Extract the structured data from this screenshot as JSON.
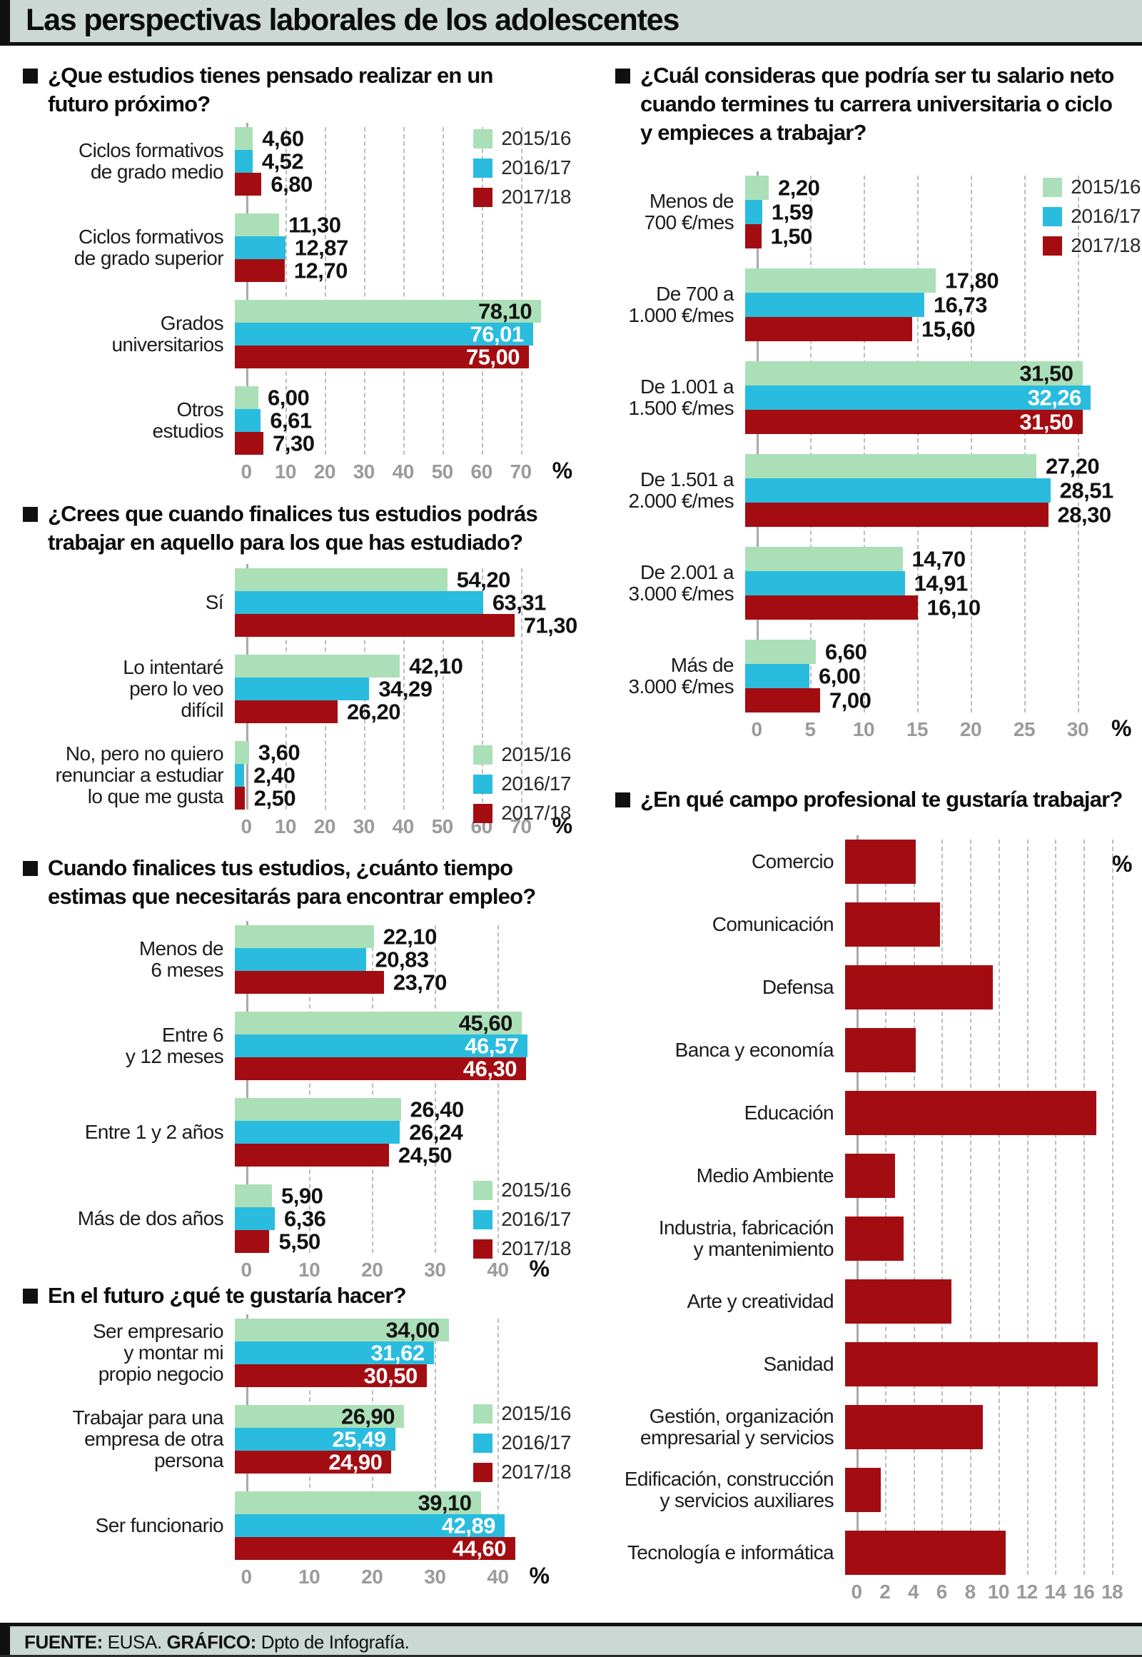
{
  "page": {
    "title": "Las perspectivas laborales de los adolescentes",
    "footer": {
      "source_label": "FUENTE:",
      "source_value": " EUSA. ",
      "graphic_label": "GRÁFICO:",
      "graphic_value": " Dpto de Infografía."
    }
  },
  "colors": {
    "green": "#abdfb8",
    "cyan": "#29bcdf",
    "red": "#a30d12",
    "band_bg": "#cbd8d4",
    "grid": "#bdbdbd",
    "tick": "#9b9b9b"
  },
  "legend": {
    "items": [
      {
        "name": "2015/16",
        "color_key": "green"
      },
      {
        "name": "2016/17",
        "color_key": "cyan"
      },
      {
        "name": "2017/18",
        "color_key": "red"
      }
    ]
  },
  "chart_data": [
    {
      "key": "c1",
      "type": "bar",
      "orientation": "horizontal",
      "unit": "%",
      "title": "¿Que estudios tienes pensado realizar en un futuro próximo?",
      "title_lines": [
        "¿Que estudios tienes pensado realizar en un",
        "futuro próximo?"
      ],
      "xticks": [
        0,
        10,
        20,
        30,
        40,
        50,
        60,
        70
      ],
      "series": [
        "2015/16",
        "2016/17",
        "2017/18"
      ],
      "categories": [
        "Ciclos formativos de grado medio",
        "Ciclos formativos de grado superior",
        "Grados universitarios",
        "Otros estudios"
      ],
      "category_lines": [
        [
          "Ciclos formativos",
          "de grado medio"
        ],
        [
          "Ciclos formativos",
          "de grado superior"
        ],
        [
          "Grados",
          "universitarios"
        ],
        [
          "Otros",
          "estudios"
        ]
      ],
      "rows": [
        {
          "values": [
            4.6,
            4.52,
            6.8
          ],
          "labels": [
            "4,60",
            "4,52",
            "6,80"
          ],
          "inside": false
        },
        {
          "values": [
            11.3,
            12.87,
            12.7
          ],
          "labels": [
            "11,30",
            "12,87",
            "12,70"
          ],
          "inside": false
        },
        {
          "values": [
            78.1,
            76.01,
            75.0
          ],
          "labels": [
            "78,10",
            "76,01",
            "75,00"
          ],
          "inside": true
        },
        {
          "values": [
            6.0,
            6.61,
            7.3
          ],
          "labels": [
            "6,00",
            "6,61",
            "7,30"
          ],
          "inside": false
        }
      ]
    },
    {
      "key": "c2",
      "type": "bar",
      "orientation": "horizontal",
      "unit": "%",
      "title": "¿Crees que cuando finalices tus estudios podrás trabajar en aquello para los que has estudiado?",
      "title_lines": [
        "¿Crees que cuando finalices tus estudios podrás",
        "trabajar en aquello para los que has estudiado?"
      ],
      "xticks": [
        0,
        10,
        20,
        30,
        40,
        50,
        60,
        70
      ],
      "series": [
        "2015/16",
        "2016/17",
        "2017/18"
      ],
      "categories": [
        "Sí",
        "Lo intentaré pero lo veo difícil",
        "No, pero no quiero renunciar a estudiar lo que me gusta"
      ],
      "category_lines": [
        [
          "Sí"
        ],
        [
          "Lo intentaré",
          "pero lo veo",
          "difícil"
        ],
        [
          "No, pero no quiero",
          "renunciar a estudiar",
          "lo que me gusta"
        ]
      ],
      "rows": [
        {
          "values": [
            54.2,
            63.31,
            71.3
          ],
          "labels": [
            "54,20",
            "63,31",
            "71,30"
          ],
          "inside": false
        },
        {
          "values": [
            42.1,
            34.29,
            26.2
          ],
          "labels": [
            "42,10",
            "34,29",
            "26,20"
          ],
          "inside": false
        },
        {
          "values": [
            3.6,
            2.4,
            2.5
          ],
          "labels": [
            "3,60",
            "2,40",
            "2,50"
          ],
          "inside": false
        }
      ]
    },
    {
      "key": "c3",
      "type": "bar",
      "orientation": "horizontal",
      "unit": "%",
      "title": "Cuando finalices tus estudios, ¿cuánto tiempo estimas que necesitarás para encontrar empleo?",
      "title_lines": [
        "Cuando finalices tus estudios, ¿cuánto tiempo",
        "estimas que necesitarás para encontrar empleo?"
      ],
      "xticks": [
        0,
        10,
        20,
        30,
        40
      ],
      "series": [
        "2015/16",
        "2016/17",
        "2017/18"
      ],
      "categories": [
        "Menos de 6 meses",
        "Entre 6 y 12 meses",
        "Entre 1 y 2 años",
        "Más de dos años"
      ],
      "category_lines": [
        [
          "Menos de",
          "6 meses"
        ],
        [
          "Entre 6",
          "y 12 meses"
        ],
        [
          "Entre 1 y 2 años"
        ],
        [
          "Más de dos años"
        ]
      ],
      "rows": [
        {
          "values": [
            22.1,
            20.83,
            23.7
          ],
          "labels": [
            "22,10",
            "20,83",
            "23,70"
          ],
          "inside": false
        },
        {
          "values": [
            45.6,
            46.57,
            46.3
          ],
          "labels": [
            "45,60",
            "46,57",
            "46,30"
          ],
          "inside": true
        },
        {
          "values": [
            26.4,
            26.24,
            24.5
          ],
          "labels": [
            "26,40",
            "26,24",
            "24,50"
          ],
          "inside": false
        },
        {
          "values": [
            5.9,
            6.36,
            5.5
          ],
          "labels": [
            "5,90",
            "6,36",
            "5,50"
          ],
          "inside": false
        }
      ]
    },
    {
      "key": "c4",
      "type": "bar",
      "orientation": "horizontal",
      "unit": "%",
      "title": "En el futuro ¿qué te gustaría hacer?",
      "title_lines": [
        "En el futuro ¿qué te gustaría hacer?"
      ],
      "xticks": [
        0,
        10,
        20,
        30,
        40
      ],
      "series": [
        "2015/16",
        "2016/17",
        "2017/18"
      ],
      "categories": [
        "Ser empresario y montar mi propio negocio",
        "Trabajar para una empresa de otra persona",
        "Ser funcionario"
      ],
      "category_lines": [
        [
          "Ser empresario",
          "y montar mi",
          "propio negocio"
        ],
        [
          "Trabajar para una",
          "empresa de otra",
          "persona"
        ],
        [
          "Ser funcionario"
        ]
      ],
      "rows": [
        {
          "values": [
            34.0,
            31.62,
            30.5
          ],
          "labels": [
            "34,00",
            "31,62",
            "30,50"
          ],
          "inside": true
        },
        {
          "values": [
            26.9,
            25.49,
            24.9
          ],
          "labels": [
            "26,90",
            "25,49",
            "24,90"
          ],
          "inside": true
        },
        {
          "values": [
            39.1,
            42.89,
            44.6
          ],
          "labels": [
            "39,10",
            "42,89",
            "44,60"
          ],
          "inside": true
        }
      ]
    },
    {
      "key": "c5",
      "type": "bar",
      "orientation": "horizontal",
      "unit": "%",
      "title": "¿Cuál consideras que podría ser tu salario neto cuando termines tu carrera universitaria o ciclo y empieces a trabajar?",
      "title_lines": [
        "¿Cuál consideras que podría ser tu salario neto",
        "cuando termines tu carrera universitaria o ciclo",
        "y empieces a trabajar?"
      ],
      "xticks": [
        0,
        5,
        10,
        15,
        20,
        25,
        30
      ],
      "series": [
        "2015/16",
        "2016/17",
        "2017/18"
      ],
      "categories": [
        "Menos de 700 €/mes",
        "De 700 a 1.000 €/mes",
        "De 1.001 a 1.500 €/mes",
        "De 1.501 a 2.000 €/mes",
        "De 2.001 a 3.000 €/mes",
        "Más de 3.000 €/mes"
      ],
      "category_lines": [
        [
          "Menos de",
          "700 €/mes"
        ],
        [
          "De 700 a",
          "1.000 €/mes"
        ],
        [
          "De 1.001 a",
          "1.500 €/mes"
        ],
        [
          "De 1.501 a",
          "2.000 €/mes"
        ],
        [
          "De 2.001 a",
          "3.000 €/mes"
        ],
        [
          "Más de",
          "3.000 €/mes"
        ]
      ],
      "rows": [
        {
          "values": [
            2.2,
            1.59,
            1.5
          ],
          "labels": [
            "2,20",
            "1,59",
            "1,50"
          ],
          "inside": false
        },
        {
          "values": [
            17.8,
            16.73,
            15.6
          ],
          "labels": [
            "17,80",
            "16,73",
            "15,60"
          ],
          "inside": false
        },
        {
          "values": [
            31.5,
            32.26,
            31.5
          ],
          "labels": [
            "31,50",
            "32,26",
            "31,50"
          ],
          "inside": true
        },
        {
          "values": [
            27.2,
            28.51,
            28.3
          ],
          "labels": [
            "27,20",
            "28,51",
            "28,30"
          ],
          "inside": false
        },
        {
          "values": [
            14.7,
            14.91,
            16.1
          ],
          "labels": [
            "14,70",
            "14,91",
            "16,10"
          ],
          "inside": false
        },
        {
          "values": [
            6.6,
            6.0,
            7.0
          ],
          "labels": [
            "6,60",
            "6,00",
            "7,00"
          ],
          "inside": false
        }
      ]
    },
    {
      "key": "c6",
      "type": "bar",
      "orientation": "horizontal",
      "unit": "%",
      "title": "¿En qué campo profesional te gustaría trabajar?",
      "title_lines": [
        "¿En qué campo profesional te gustaría trabajar?"
      ],
      "xticks": [
        0,
        2,
        4,
        6,
        8,
        10,
        12,
        14,
        16,
        18
      ],
      "series": null,
      "categories": [
        "Comercio",
        "Comunicación",
        "Defensa",
        "Banca y economía",
        "Educación",
        "Medio Ambiente",
        "Industria, fabricación y mantenimiento",
        "Arte y creatividad",
        "Sanidad",
        "Gestión, organización empresarial y servicios",
        "Edificación, construcción y servicios auxiliares",
        "Tecnología e informática"
      ],
      "category_lines": [
        [
          "Comercio"
        ],
        [
          "Comunicación"
        ],
        [
          "Defensa"
        ],
        [
          "Banca y economía"
        ],
        [
          "Educación"
        ],
        [
          "Medio Ambiente"
        ],
        [
          "Industria, fabricación",
          "y mantenimiento"
        ],
        [
          "Arte y creatividad"
        ],
        [
          "Sanidad"
        ],
        [
          "Gestión, organización",
          "empresarial y servicios"
        ],
        [
          "Edificación, construcción",
          "y servicios auxiliares"
        ],
        [
          "Tecnología e informática"
        ]
      ],
      "rows": [
        {
          "values": [
            5.0
          ],
          "labels": [],
          "inside": false
        },
        {
          "values": [
            6.7
          ],
          "labels": [],
          "inside": false
        },
        {
          "values": [
            10.4
          ],
          "labels": [],
          "inside": false
        },
        {
          "values": [
            5.0
          ],
          "labels": [],
          "inside": false
        },
        {
          "values": [
            17.7
          ],
          "labels": [],
          "inside": false
        },
        {
          "values": [
            3.5
          ],
          "labels": [],
          "inside": false
        },
        {
          "values": [
            4.1
          ],
          "labels": [],
          "inside": false
        },
        {
          "values": [
            7.5
          ],
          "labels": [],
          "inside": false
        },
        {
          "values": [
            17.8
          ],
          "labels": [],
          "inside": false
        },
        {
          "values": [
            9.7
          ],
          "labels": [],
          "inside": false
        },
        {
          "values": [
            2.5
          ],
          "labels": [],
          "inside": false
        },
        {
          "values": [
            11.3
          ],
          "labels": [],
          "inside": false
        }
      ]
    }
  ]
}
